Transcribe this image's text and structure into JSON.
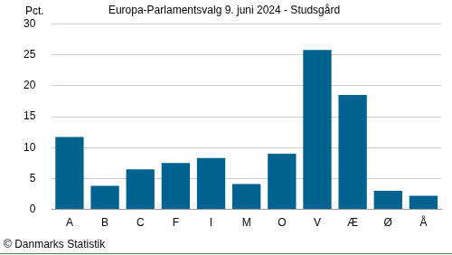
{
  "chart_data": {
    "type": "bar",
    "title": "Europa-Parlamentsvalg 9. juni 2024 - Studsgård",
    "ylabel": "Pct.",
    "note": "© Danmarks Statistik",
    "categories": [
      "A",
      "B",
      "C",
      "F",
      "I",
      "M",
      "O",
      "V",
      "Æ",
      "Ø",
      "Å"
    ],
    "values": [
      11.7,
      3.8,
      6.5,
      7.5,
      8.3,
      4.1,
      9.0,
      25.8,
      18.5,
      3.0,
      2.2
    ],
    "color": "#00628f",
    "ylim": [
      0,
      30
    ],
    "yticks": [
      0,
      5,
      10,
      15,
      20,
      25,
      30
    ],
    "grid": true
  }
}
